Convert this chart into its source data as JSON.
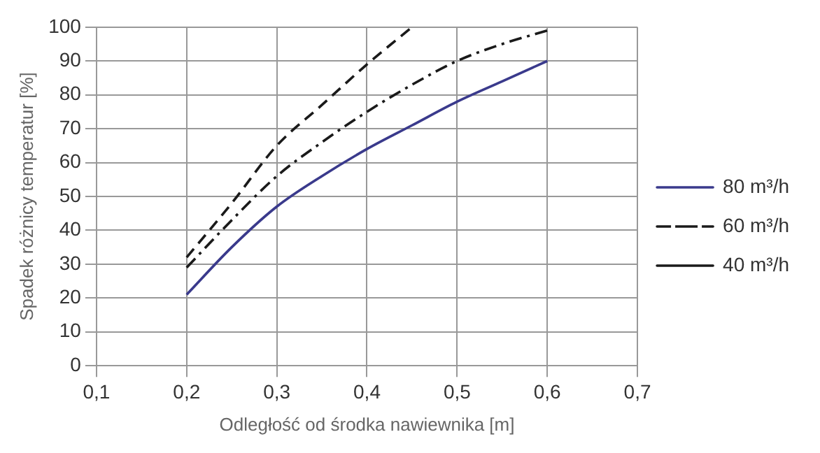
{
  "chart_data": {
    "type": "line",
    "xlabel": "Odległość od środka nawiewnika [m]",
    "ylabel": "Spadek różnicy temperatur [%]",
    "x": [
      0.2,
      0.25,
      0.3,
      0.35,
      0.4,
      0.45,
      0.5,
      0.55,
      0.6
    ],
    "series": [
      {
        "name": "80 m³/h",
        "color": "#3a3a8c",
        "line_style": "solid",
        "values": [
          21,
          35,
          47,
          56,
          64,
          71,
          78,
          84,
          90
        ]
      },
      {
        "name": "60 m³/h",
        "color": "#1a1a1a",
        "line_style": "dashdot",
        "values": [
          29,
          43,
          56,
          66,
          75,
          83,
          90,
          95,
          99
        ]
      },
      {
        "name": "40 m³/h",
        "color": "#1a1a1a",
        "line_style": "dashed",
        "x": [
          0.2,
          0.25,
          0.3,
          0.35,
          0.4,
          0.45
        ],
        "values": [
          32,
          48,
          65,
          77,
          89,
          100
        ]
      }
    ],
    "xlim": [
      0.1,
      0.7
    ],
    "xticks": [
      {
        "value": 0.1,
        "label": "0,1"
      },
      {
        "value": 0.2,
        "label": "0,2"
      },
      {
        "value": 0.3,
        "label": "0,3"
      },
      {
        "value": 0.4,
        "label": "0,4"
      },
      {
        "value": 0.5,
        "label": "0,5"
      },
      {
        "value": 0.6,
        "label": "0,6"
      },
      {
        "value": 0.7,
        "label": "0,7"
      }
    ],
    "ylim": [
      0,
      100
    ],
    "yticks": [
      0,
      10,
      20,
      30,
      40,
      50,
      60,
      70,
      80,
      90,
      100
    ],
    "grid": true,
    "legend": "right",
    "marker": "none"
  }
}
